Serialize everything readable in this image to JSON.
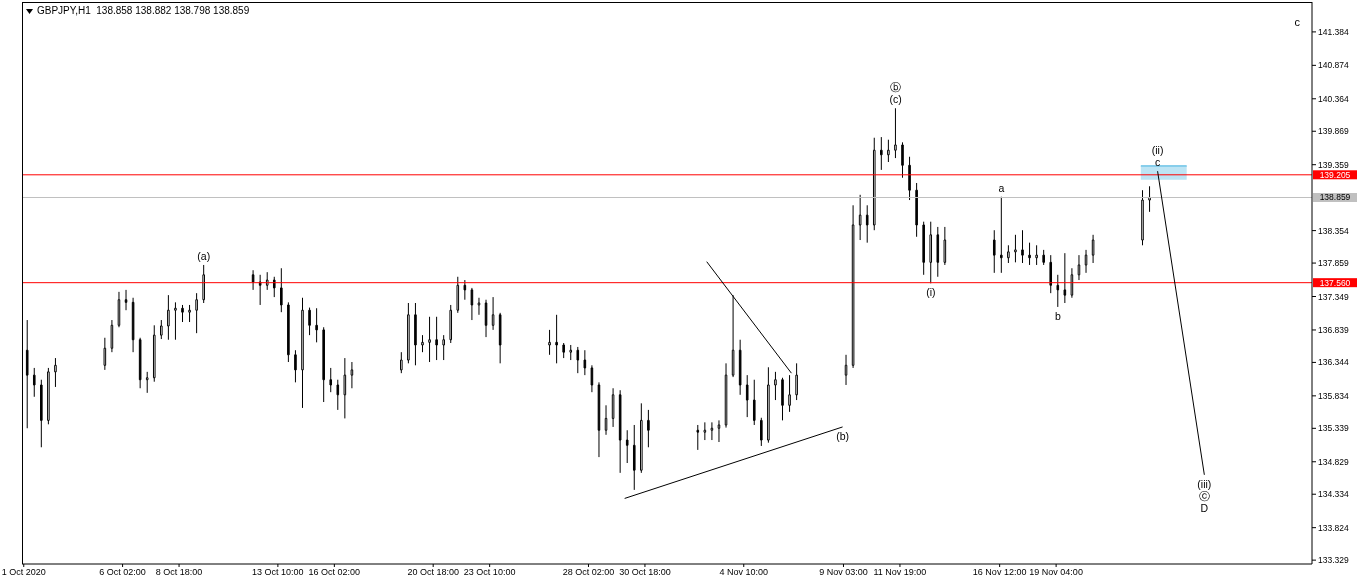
{
  "chart_data": {
    "type": "candlestick",
    "title": "GBPJPY,H1  138.858 138.882 138.798 138.859",
    "color": "#000000",
    "x": [
      "2020-10-01T14:00",
      "2020-10-01T22:00",
      "2020-10-02T06:00",
      "2020-10-02T14:00",
      "2020-10-02T22:00",
      "2020-10-05T06:00",
      "2020-10-05T14:00",
      "2020-10-05T22:00",
      "2020-10-06T06:00",
      "2020-10-06T14:00",
      "2020-10-06T22:00",
      "2020-10-07T06:00",
      "2020-10-07T14:00",
      "2020-10-07T22:00",
      "2020-10-08T06:00",
      "2020-10-08T14:00",
      "2020-10-08T22:00",
      "2020-10-09T06:00",
      "2020-10-09T14:00",
      "2020-10-09T22:00",
      "2020-10-12T06:00",
      "2020-10-12T14:00",
      "2020-10-12T22:00",
      "2020-10-13T06:00",
      "2020-10-13T14:00",
      "2020-10-13T22:00",
      "2020-10-14T06:00",
      "2020-10-14T14:00",
      "2020-10-14T22:00",
      "2020-10-15T06:00",
      "2020-10-15T14:00",
      "2020-10-15T22:00",
      "2020-10-16T06:00",
      "2020-10-16T14:00",
      "2020-10-16T22:00",
      "2020-10-19T06:00",
      "2020-10-19T14:00",
      "2020-10-19T22:00",
      "2020-10-20T06:00",
      "2020-10-20T14:00",
      "2020-10-20T22:00",
      "2020-10-21T06:00",
      "2020-10-21T14:00",
      "2020-10-21T22:00",
      "2020-10-22T06:00",
      "2020-10-22T14:00",
      "2020-10-22T22:00",
      "2020-10-23T06:00",
      "2020-10-23T14:00",
      "2020-10-23T22:00",
      "2020-10-26T06:00",
      "2020-10-26T14:00",
      "2020-10-26T22:00",
      "2020-10-27T06:00",
      "2020-10-27T14:00",
      "2020-10-27T22:00",
      "2020-10-28T06:00",
      "2020-10-28T14:00",
      "2020-10-28T22:00",
      "2020-10-29T06:00",
      "2020-10-29T14:00",
      "2020-10-29T22:00",
      "2020-10-30T06:00",
      "2020-10-30T14:00",
      "2020-10-30T22:00",
      "2020-11-02T06:00",
      "2020-11-02T14:00",
      "2020-11-02T22:00",
      "2020-11-03T06:00",
      "2020-11-03T14:00",
      "2020-11-03T22:00",
      "2020-11-04T06:00",
      "2020-11-04T14:00",
      "2020-11-04T22:00",
      "2020-11-05T06:00",
      "2020-11-05T14:00",
      "2020-11-05T22:00",
      "2020-11-06T06:00",
      "2020-11-06T14:00",
      "2020-11-06T22:00",
      "2020-11-09T06:00",
      "2020-11-09T14:00",
      "2020-11-09T22:00",
      "2020-11-10T06:00",
      "2020-11-10T14:00",
      "2020-11-10T22:00",
      "2020-11-11T06:00",
      "2020-11-11T14:00",
      "2020-11-11T22:00",
      "2020-11-12T06:00",
      "2020-11-12T14:00",
      "2020-11-12T22:00",
      "2020-11-13T06:00",
      "2020-11-13T14:00",
      "2020-11-13T22:00",
      "2020-11-16T06:00",
      "2020-11-16T14:00",
      "2020-11-16T22:00",
      "2020-11-17T06:00",
      "2020-11-17T14:00",
      "2020-11-17T22:00",
      "2020-11-18T06:00",
      "2020-11-18T14:00",
      "2020-11-18T22:00",
      "2020-11-19T06:00",
      "2020-11-19T14:00",
      "2020-11-19T22:00",
      "2020-11-20T06:00",
      "2020-11-20T14:00",
      "2020-11-20T22:00",
      "2020-11-23T06:00",
      "2020-11-23T14:00"
    ],
    "ohlc": [
      [
        136.53,
        136.99,
        135.34,
        136.15
      ],
      [
        136.15,
        136.26,
        135.82,
        136.0
      ],
      [
        136.0,
        136.08,
        135.05,
        135.46
      ],
      [
        135.46,
        136.26,
        135.4,
        136.2
      ],
      [
        136.2,
        136.41,
        135.97,
        136.3
      ],
      [
        136.3,
        136.72,
        136.23,
        136.56
      ],
      [
        136.56,
        136.99,
        136.5,
        136.91
      ],
      [
        136.91,
        137.42,
        136.88,
        137.3
      ],
      [
        137.3,
        137.45,
        137.14,
        137.26
      ],
      [
        137.26,
        137.33,
        136.5,
        136.69
      ],
      [
        136.69,
        136.72,
        135.95,
        136.08
      ],
      [
        136.08,
        136.2,
        135.88,
        136.11
      ],
      [
        136.11,
        136.91,
        136.05,
        136.76
      ],
      [
        136.76,
        136.99,
        136.7,
        136.9
      ],
      [
        136.9,
        137.37,
        136.69,
        137.14
      ],
      [
        137.14,
        137.26,
        136.69,
        137.17
      ],
      [
        137.17,
        137.22,
        136.96,
        137.11
      ],
      [
        137.11,
        137.22,
        136.96,
        137.14
      ],
      [
        137.14,
        137.4,
        136.79,
        137.3
      ],
      [
        137.3,
        137.83,
        137.25,
        137.68
      ],
      [
        137.68,
        137.75,
        137.45,
        137.57
      ],
      [
        137.57,
        137.68,
        137.22,
        137.52
      ],
      [
        137.52,
        137.72,
        137.45,
        137.6
      ],
      [
        137.6,
        137.65,
        137.34,
        137.48
      ],
      [
        137.48,
        137.78,
        137.11,
        137.22
      ],
      [
        137.22,
        137.26,
        136.35,
        136.46
      ],
      [
        136.46,
        136.53,
        136.04,
        136.23
      ],
      [
        136.23,
        137.33,
        135.65,
        137.14
      ],
      [
        137.14,
        137.18,
        136.76,
        136.91
      ],
      [
        136.91,
        137.17,
        136.65,
        136.84
      ],
      [
        136.84,
        136.88,
        135.74,
        136.08
      ],
      [
        136.08,
        136.26,
        135.89,
        136.0
      ],
      [
        136.0,
        136.08,
        135.62,
        135.85
      ],
      [
        135.85,
        136.41,
        135.49,
        136.15
      ],
      [
        136.15,
        136.35,
        135.95,
        136.23
      ],
      [
        136.23,
        136.5,
        136.18,
        136.38
      ],
      [
        136.38,
        137.25,
        136.33,
        137.07
      ],
      [
        137.07,
        137.25,
        136.3,
        136.61
      ],
      [
        136.61,
        136.76,
        136.5,
        136.65
      ],
      [
        136.65,
        137.04,
        136.35,
        136.69
      ],
      [
        136.69,
        137.04,
        136.38,
        136.61
      ],
      [
        136.61,
        136.76,
        136.38,
        136.69
      ],
      [
        136.69,
        137.22,
        136.64,
        137.14
      ],
      [
        137.14,
        137.65,
        137.1,
        137.52
      ],
      [
        137.52,
        137.6,
        137.3,
        137.45
      ],
      [
        137.45,
        137.48,
        136.99,
        137.22
      ],
      [
        137.22,
        137.33,
        137.07,
        137.25
      ],
      [
        137.25,
        137.3,
        136.73,
        136.91
      ],
      [
        136.91,
        137.34,
        136.84,
        137.07
      ],
      [
        137.07,
        137.1,
        136.33,
        136.61
      ],
      [
        136.61,
        136.84,
        136.46,
        136.65
      ],
      [
        136.65,
        137.07,
        136.33,
        136.61
      ],
      [
        136.61,
        136.64,
        136.41,
        136.5
      ],
      [
        136.5,
        136.61,
        136.38,
        136.53
      ],
      [
        136.53,
        136.58,
        136.18,
        136.38
      ],
      [
        136.38,
        136.53,
        136.15,
        136.26
      ],
      [
        136.26,
        136.3,
        135.89,
        136.0
      ],
      [
        136.0,
        136.04,
        134.9,
        135.31
      ],
      [
        135.31,
        135.69,
        135.24,
        135.49
      ],
      [
        135.49,
        135.95,
        135.36,
        135.85
      ],
      [
        135.85,
        135.92,
        134.66,
        135.16
      ],
      [
        135.16,
        135.31,
        134.81,
        135.08
      ],
      [
        135.08,
        135.39,
        134.4,
        134.7
      ],
      [
        134.7,
        135.72,
        134.66,
        135.46
      ],
      [
        135.46,
        135.62,
        135.05,
        135.31
      ],
      [
        135.31,
        135.39,
        135.01,
        135.28
      ],
      [
        135.28,
        135.43,
        135.16,
        135.31
      ],
      [
        135.31,
        135.43,
        135.16,
        135.34
      ],
      [
        135.34,
        135.46,
        135.13,
        135.39
      ],
      [
        135.39,
        136.33,
        135.35,
        136.15
      ],
      [
        136.15,
        137.37,
        136.12,
        136.53
      ],
      [
        136.53,
        136.69,
        135.85,
        136.0
      ],
      [
        136.0,
        136.15,
        135.51,
        135.77
      ],
      [
        135.77,
        136.08,
        135.39,
        135.46
      ],
      [
        135.46,
        135.5,
        135.07,
        135.16
      ],
      [
        135.16,
        136.27,
        135.12,
        136.0
      ],
      [
        136.0,
        136.2,
        135.77,
        136.08
      ],
      [
        136.08,
        136.11,
        135.46,
        135.69
      ],
      [
        135.69,
        136.15,
        135.59,
        135.85
      ],
      [
        135.85,
        136.33,
        135.77,
        136.15
      ],
      [
        136.15,
        136.46,
        136.0,
        136.3
      ],
      [
        136.3,
        138.74,
        136.26,
        138.44
      ],
      [
        138.44,
        138.9,
        138.21,
        138.59
      ],
      [
        138.59,
        138.74,
        138.17,
        138.44
      ],
      [
        138.44,
        139.77,
        138.36,
        139.58
      ],
      [
        139.58,
        139.78,
        139.28,
        139.51
      ],
      [
        139.51,
        139.74,
        139.4,
        139.58
      ],
      [
        139.58,
        140.22,
        139.46,
        139.66
      ],
      [
        139.66,
        139.7,
        139.16,
        139.35
      ],
      [
        139.35,
        139.48,
        138.82,
        138.97
      ],
      [
        138.97,
        139.08,
        138.26,
        138.44
      ],
      [
        138.44,
        138.49,
        137.68,
        137.87
      ],
      [
        137.87,
        138.49,
        137.55,
        138.29
      ],
      [
        138.29,
        138.41,
        137.65,
        137.87
      ],
      [
        137.87,
        138.41,
        137.83,
        138.21
      ],
      [
        138.21,
        138.36,
        137.71,
        137.98
      ],
      [
        137.98,
        138.87,
        137.71,
        137.94
      ],
      [
        137.94,
        138.13,
        137.86,
        138.03
      ],
      [
        138.03,
        138.29,
        137.87,
        138.06
      ],
      [
        138.06,
        138.36,
        137.86,
        137.98
      ],
      [
        137.98,
        138.17,
        137.83,
        137.94
      ],
      [
        137.94,
        138.13,
        137.83,
        137.98
      ],
      [
        137.98,
        138.06,
        137.83,
        137.87
      ],
      [
        137.87,
        137.98,
        137.4,
        137.52
      ],
      [
        137.52,
        137.68,
        137.19,
        137.45
      ],
      [
        137.45,
        138.01,
        137.25,
        137.37
      ],
      [
        137.37,
        137.78,
        137.33,
        137.68
      ],
      [
        137.68,
        137.98,
        137.6,
        137.83
      ],
      [
        137.83,
        138.06,
        137.71,
        137.98
      ],
      [
        137.98,
        138.29,
        137.86,
        138.21
      ],
      [
        138.21,
        138.97,
        138.13,
        138.82
      ],
      [
        138.82,
        139.03,
        138.64,
        138.86
      ]
    ],
    "series": [
      {
        "type": "line",
        "color": "#000000",
        "x": [
          "2020-11-02T16:00",
          "2020-11-06T16:00"
        ],
        "values": [
          137.88,
          136.18
        ]
      },
      {
        "type": "line",
        "color": "#000000",
        "x": [
          "2020-10-29T19:00",
          "2020-11-09T02:00"
        ],
        "values": [
          134.27,
          135.36
        ]
      },
      {
        "type": "line",
        "color": "#000000",
        "x": [
          "2020-11-23T23:00",
          "2020-11-26T04:00"
        ],
        "values": [
          139.26,
          134.63
        ]
      },
      {
        "type": "line",
        "color": "#87ceeb",
        "x": [
          "2020-11-23T04:00",
          "2020-11-25T08:00"
        ],
        "values": [
          139.34,
          139.34
        ],
        "lower": [
          139.13,
          139.13
        ],
        "upper": [
          139.34,
          139.34
        ]
      }
    ],
    "xlim": [
      "2020-10-01T08:00",
      "2020-12-01T06:00"
    ],
    "xticks": [
      {
        "value": "2020-10-01T10:00",
        "label": "1 Oct 2020"
      },
      {
        "value": "2020-10-06T02:00",
        "label": "6 Oct 02:00"
      },
      {
        "value": "2020-10-08T18:00",
        "label": "8 Oct 18:00"
      },
      {
        "value": "2020-10-13T10:00",
        "label": "13 Oct 10:00"
      },
      {
        "value": "2020-10-16T02:00",
        "label": "16 Oct 02:00"
      },
      {
        "value": "2020-10-20T18:00",
        "label": "20 Oct 18:00"
      },
      {
        "value": "2020-10-23T10:00",
        "label": "23 Oct 10:00"
      },
      {
        "value": "2020-10-28T02:00",
        "label": "28 Oct 02:00"
      },
      {
        "value": "2020-10-30T18:00",
        "label": "30 Oct 18:00"
      },
      {
        "value": "2020-11-04T10:00",
        "label": "4 Nov 10:00"
      },
      {
        "value": "2020-11-09T03:00",
        "label": "9 Nov 03:00"
      },
      {
        "value": "2020-11-11T19:00",
        "label": "11 Nov 19:00"
      },
      {
        "value": "2020-11-16T12:00",
        "label": "16 Nov 12:00"
      },
      {
        "value": "2020-11-19T04:00",
        "label": "19 Nov 04:00"
      }
    ],
    "ylim": [
      133.27,
      141.84
    ],
    "yticks": [
      141.384,
      140.874,
      140.364,
      139.869,
      139.359,
      138.354,
      137.859,
      137.349,
      136.839,
      136.344,
      135.834,
      135.339,
      134.829,
      134.334,
      133.824,
      133.329
    ],
    "ref_lines": [
      {
        "axis": "y",
        "value": 139.205,
        "label": "139.205",
        "color": "#ff0000"
      },
      {
        "axis": "y",
        "value": 138.859,
        "label": "138.859",
        "color": "#c0c0c0"
      },
      {
        "axis": "y",
        "value": 137.56,
        "label": "137.560",
        "color": "#ff0000"
      }
    ],
    "annotations": [
      {
        "text": "(a)",
        "x": "2020-10-09T22:00",
        "y": 137.83
      },
      {
        "text": "(b)",
        "x": "2020-11-09T02:00",
        "y": 135.36
      },
      {
        "text": "(c)",
        "x": "2020-11-11T14:00",
        "y": 140.22
      },
      {
        "text": "ⓑ",
        "x": "2020-11-11T14:00",
        "y": 140.22
      },
      {
        "text": "(i)",
        "x": "2020-11-13T06:00",
        "y": 137.55
      },
      {
        "text": "a",
        "x": "2020-11-16T14:00",
        "y": 138.87
      },
      {
        "text": "b",
        "x": "2020-11-19T06:00",
        "y": 137.19
      },
      {
        "text": "c",
        "x": "2020-11-23T23:00",
        "y": 139.26
      },
      {
        "text": "(ii)",
        "x": "2020-11-23T23:00",
        "y": 139.26
      },
      {
        "text": "(iii)",
        "x": "2020-11-26T04:00",
        "y": 134.63
      },
      {
        "text": "ⓒ",
        "x": "2020-11-26T04:00",
        "y": 134.63
      },
      {
        "text": "D",
        "x": "2020-11-26T04:00",
        "y": 134.63
      },
      "c"
    ]
  }
}
